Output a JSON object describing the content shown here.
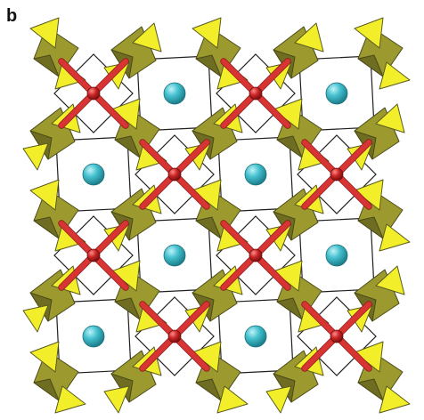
{
  "panel": {
    "label": "b"
  },
  "colors": {
    "background": "#ffffff",
    "tetrahedron_front": "#f2ef2a",
    "tetrahedron_shadow": "#9c9a2e",
    "tetrahedron_dark": "#6f6d22",
    "cation_sphere": "#45c1cf",
    "cation_highlight": "#bff3f8",
    "bond_red": "#d93434",
    "bond_node": "#c92424",
    "cell_edge": "#202020"
  },
  "structure": {
    "rows": 4,
    "columns": 4,
    "pattern": [
      [
        "cross",
        "sphere",
        "cross",
        "sphere"
      ],
      [
        "sphere",
        "cross",
        "sphere",
        "cross"
      ],
      [
        "cross",
        "sphere",
        "cross",
        "sphere"
      ],
      [
        "sphere",
        "cross",
        "sphere",
        "cross"
      ]
    ]
  }
}
